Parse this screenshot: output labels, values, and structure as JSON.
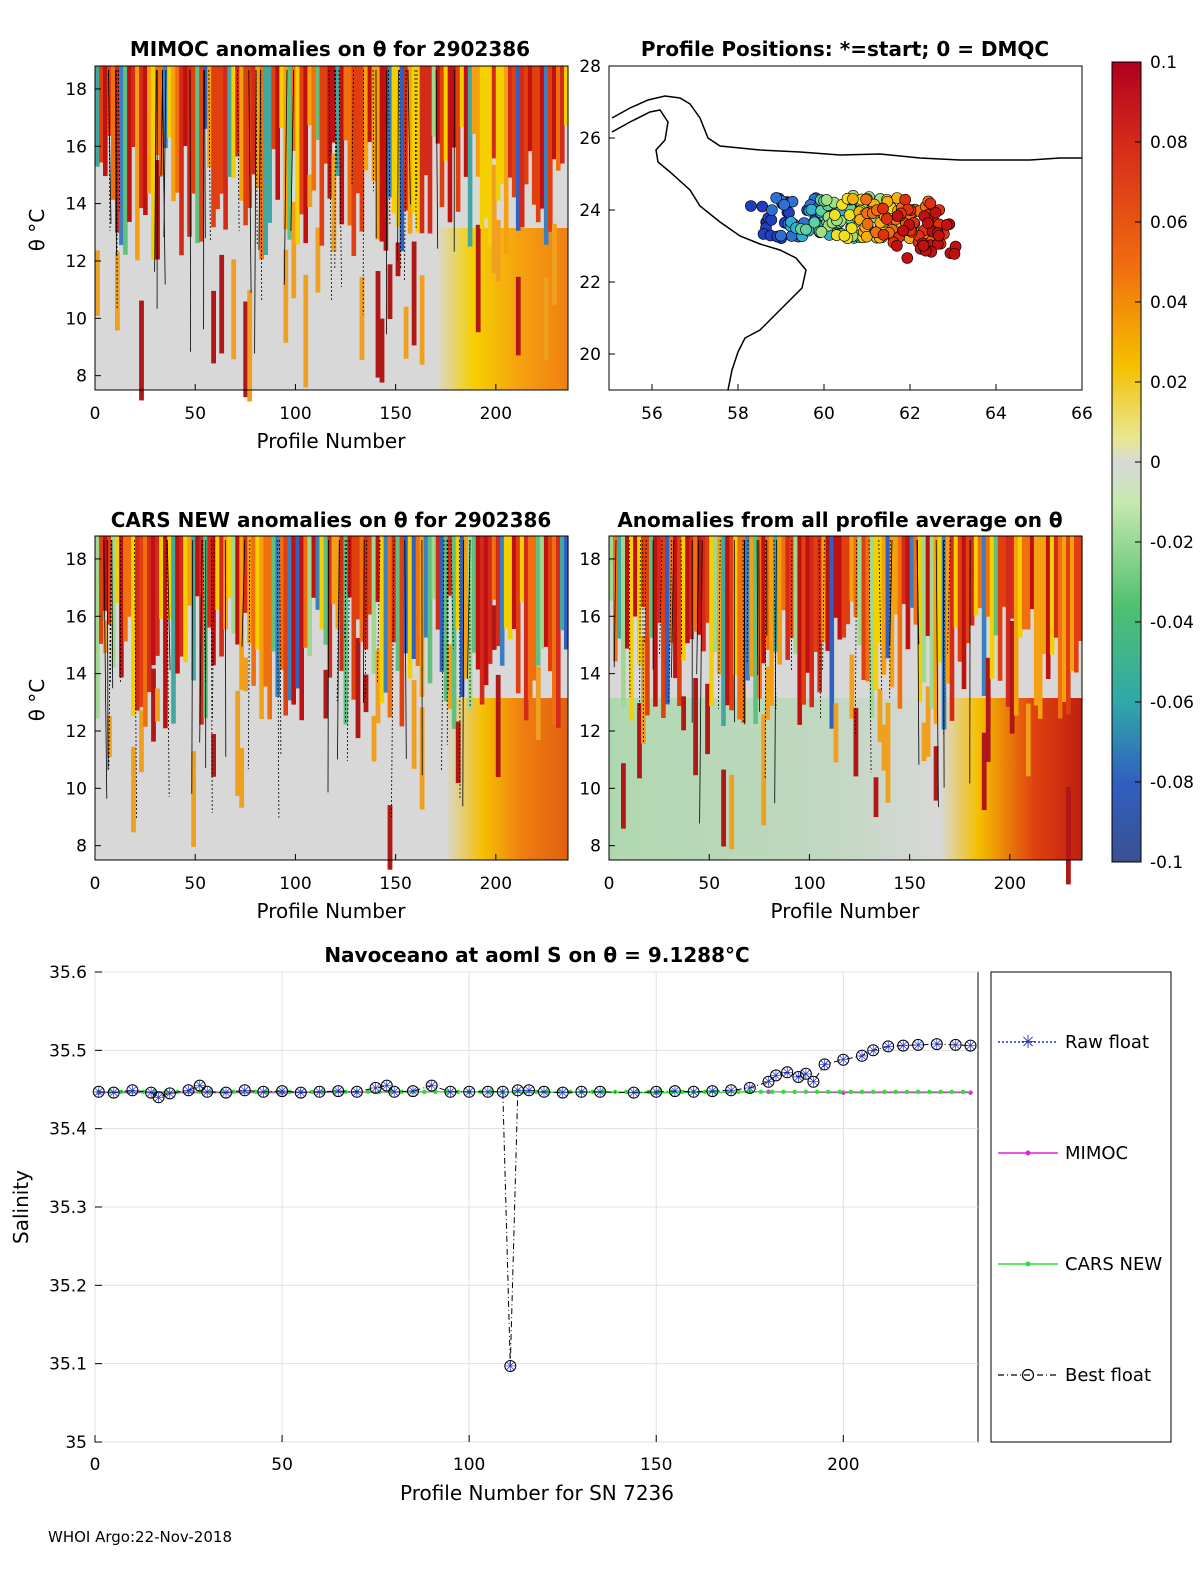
{
  "footer": "WHOI Argo:22-Nov-2018",
  "colorbar": {
    "ticks": [
      "0.1",
      "0.08",
      "0.06",
      "0.04",
      "0.02",
      "0",
      "-0.02",
      "-0.04",
      "-0.06",
      "-0.08",
      "-0.1"
    ],
    "range": [
      -0.1,
      0.1
    ]
  },
  "chart_data": [
    {
      "id": "mimoc",
      "type": "heatmap",
      "title": "MIMOC anomalies on θ  for 2902386",
      "xlabel": "Profile Number",
      "ylabel": "θ °C",
      "xticks": [
        "0",
        "50",
        "100",
        "150",
        "200"
      ],
      "yticks": [
        "18",
        "16",
        "14",
        "12",
        "10",
        "8"
      ],
      "xlim": [
        0,
        236
      ],
      "ylim": [
        7.5,
        18.8
      ]
    },
    {
      "id": "positions",
      "type": "scatter",
      "title": "Profile Positions: *=start; 0 = DMQC",
      "xticks": [
        "56",
        "58",
        "60",
        "62",
        "64",
        "66"
      ],
      "yticks": [
        "28",
        "26",
        "24",
        "22",
        "20"
      ],
      "xlim": [
        55,
        66
      ],
      "ylim": [
        19,
        28
      ]
    },
    {
      "id": "cars",
      "type": "heatmap",
      "title": "CARS NEW anomalies on θ for 2902386",
      "xlabel": "Profile Number",
      "ylabel": "θ °C",
      "xticks": [
        "0",
        "50",
        "100",
        "150",
        "200"
      ],
      "yticks": [
        "18",
        "16",
        "14",
        "12",
        "10",
        "8"
      ],
      "xlim": [
        0,
        236
      ],
      "ylim": [
        7.5,
        18.8
      ]
    },
    {
      "id": "avg",
      "type": "heatmap",
      "title": "Anomalies from all profile average on θ",
      "xlabel": "Profile Number",
      "xticks": [
        "0",
        "50",
        "100",
        "150",
        "200"
      ],
      "yticks": [
        "18",
        "16",
        "14",
        "12",
        "10",
        "8"
      ],
      "xlim": [
        0,
        236
      ],
      "ylim": [
        7.5,
        18.8
      ]
    },
    {
      "id": "salinity",
      "type": "line",
      "title": "Navoceano at aoml S on θ = 9.1288°C",
      "xlabel": "Profile Number for SN 7236",
      "ylabel": "Salinity",
      "xticks": [
        "0",
        "50",
        "100",
        "150",
        "200"
      ],
      "yticks": [
        "35.6",
        "35.5",
        "35.4",
        "35.3",
        "35.2",
        "35.1",
        "35"
      ],
      "xlim": [
        0,
        236
      ],
      "ylim": [
        35,
        35.6
      ],
      "legend": [
        "Raw float",
        "MIMOC",
        "CARS NEW",
        "Best float"
      ],
      "series": [
        {
          "name": "Raw float / Best float",
          "points": [
            [
              1,
              35.447
            ],
            [
              5,
              35.446
            ],
            [
              10,
              35.449
            ],
            [
              15,
              35.446
            ],
            [
              17,
              35.44
            ],
            [
              20,
              35.445
            ],
            [
              25,
              35.449
            ],
            [
              28,
              35.455
            ],
            [
              30,
              35.447
            ],
            [
              35,
              35.446
            ],
            [
              40,
              35.449
            ],
            [
              45,
              35.447
            ],
            [
              50,
              35.448
            ],
            [
              55,
              35.446
            ],
            [
              60,
              35.447
            ],
            [
              65,
              35.448
            ],
            [
              70,
              35.447
            ],
            [
              75,
              35.452
            ],
            [
              78,
              35.455
            ],
            [
              80,
              35.447
            ],
            [
              85,
              35.448
            ],
            [
              90,
              35.455
            ],
            [
              95,
              35.447
            ],
            [
              100,
              35.447
            ],
            [
              105,
              35.447
            ],
            [
              109,
              35.447
            ],
            [
              111,
              35.097
            ],
            [
              113,
              35.449
            ],
            [
              116,
              35.449
            ],
            [
              120,
              35.447
            ],
            [
              125,
              35.446
            ],
            [
              130,
              35.447
            ],
            [
              135,
              35.447
            ],
            [
              144,
              35.446
            ],
            [
              150,
              35.447
            ],
            [
              155,
              35.448
            ],
            [
              160,
              35.447
            ],
            [
              165,
              35.448
            ],
            [
              170,
              35.449
            ],
            [
              175,
              35.452
            ],
            [
              180,
              35.46
            ],
            [
              182,
              35.468
            ],
            [
              185,
              35.472
            ],
            [
              188,
              35.466
            ],
            [
              190,
              35.47
            ],
            [
              192,
              35.46
            ],
            [
              195,
              35.482
            ],
            [
              200,
              35.488
            ],
            [
              205,
              35.493
            ],
            [
              208,
              35.5
            ],
            [
              212,
              35.505
            ],
            [
              216,
              35.506
            ],
            [
              220,
              35.507
            ],
            [
              225,
              35.508
            ],
            [
              230,
              35.507
            ],
            [
              234,
              35.506
            ]
          ]
        },
        {
          "name": "MIMOC",
          "points": [
            [
              1,
              35.446
            ],
            [
              50,
              35.446
            ],
            [
              100,
              35.447
            ],
            [
              150,
              35.446
            ],
            [
              180,
              35.447
            ],
            [
              200,
              35.446
            ],
            [
              234,
              35.446
            ]
          ]
        },
        {
          "name": "CARS NEW",
          "points": [
            [
              1,
              35.447
            ],
            [
              50,
              35.447
            ],
            [
              100,
              35.447
            ],
            [
              150,
              35.446
            ],
            [
              180,
              35.447
            ],
            [
              200,
              35.447
            ],
            [
              234,
              35.447
            ]
          ]
        }
      ]
    }
  ]
}
